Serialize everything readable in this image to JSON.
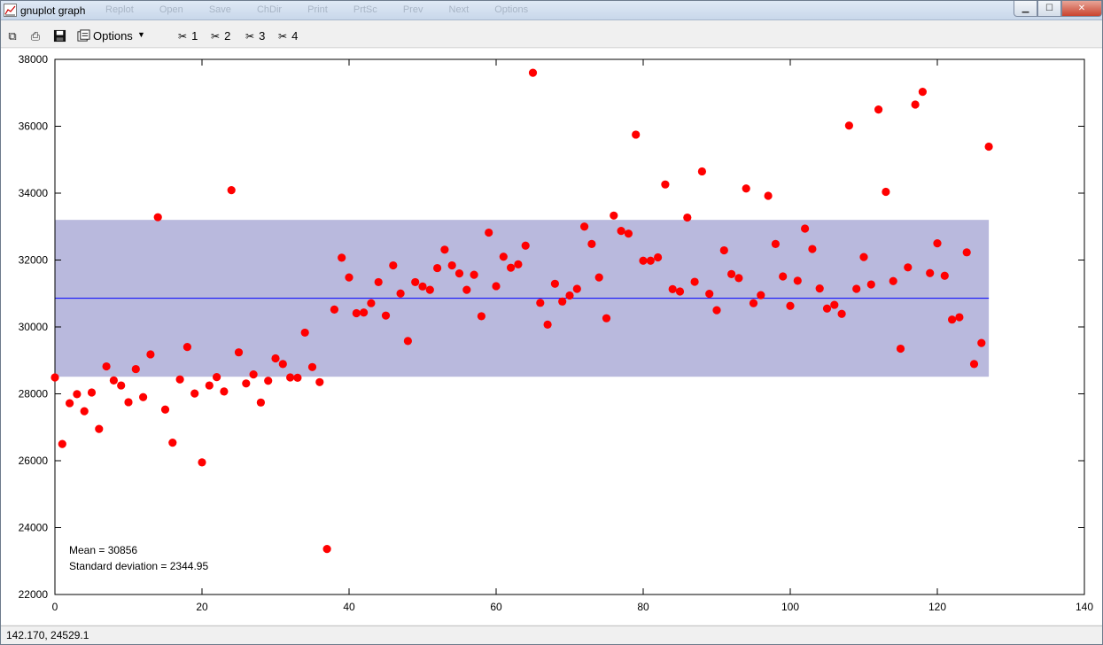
{
  "window": {
    "title": "gnuplot graph",
    "ghost_menu": [
      "Replot",
      "Open",
      "Save",
      "ChDir",
      "Print",
      "PrtSc",
      "Prev",
      "Next",
      "Options"
    ],
    "buttons": {
      "minimize": "▁",
      "maximize": "☐",
      "close": "✕"
    }
  },
  "toolbar": {
    "copy_icon": "copy-icon",
    "print_icon": "printer-icon",
    "save_icon": "floppy-icon",
    "options_label": "Options",
    "tools": [
      "1",
      "2",
      "3",
      "4"
    ]
  },
  "status": {
    "coordinates": "142.170,  24529.1"
  },
  "colors": {
    "points": "#ff0000",
    "band": "#b9b9dd",
    "mean_line": "#0000ff"
  },
  "chart_data": {
    "type": "scatter",
    "xlim": [
      0,
      140
    ],
    "ylim": [
      22000,
      38000
    ],
    "x_ticks": [
      0,
      20,
      40,
      60,
      80,
      100,
      120,
      140
    ],
    "y_ticks": [
      22000,
      24000,
      26000,
      28000,
      30000,
      32000,
      34000,
      36000,
      38000
    ],
    "mean": 30856,
    "stddev": 2344.95,
    "band": {
      "x_range": [
        0,
        127
      ],
      "y_range": [
        28511,
        33201
      ]
    },
    "annotations": [
      "Mean = 30856",
      "Standard deviation = 2344.95"
    ],
    "points": [
      [
        0,
        28490
      ],
      [
        1,
        26500
      ],
      [
        2,
        27720
      ],
      [
        3,
        27990
      ],
      [
        4,
        27480
      ],
      [
        5,
        28040
      ],
      [
        6,
        26950
      ],
      [
        7,
        28820
      ],
      [
        8,
        28400
      ],
      [
        9,
        28250
      ],
      [
        10,
        27750
      ],
      [
        11,
        28740
      ],
      [
        12,
        27900
      ],
      [
        13,
        29180
      ],
      [
        14,
        33280
      ],
      [
        15,
        27530
      ],
      [
        16,
        26540
      ],
      [
        17,
        28430
      ],
      [
        18,
        29400
      ],
      [
        19,
        28010
      ],
      [
        20,
        25950
      ],
      [
        21,
        28250
      ],
      [
        22,
        28500
      ],
      [
        23,
        28070
      ],
      [
        24,
        34090
      ],
      [
        25,
        29240
      ],
      [
        26,
        28310
      ],
      [
        27,
        28580
      ],
      [
        28,
        27740
      ],
      [
        29,
        28390
      ],
      [
        30,
        29060
      ],
      [
        31,
        28890
      ],
      [
        32,
        28490
      ],
      [
        33,
        28480
      ],
      [
        34,
        29830
      ],
      [
        35,
        28800
      ],
      [
        36,
        28350
      ],
      [
        37,
        23360
      ],
      [
        38,
        30520
      ],
      [
        39,
        32070
      ],
      [
        40,
        31480
      ],
      [
        41,
        30410
      ],
      [
        42,
        30430
      ],
      [
        43,
        30710
      ],
      [
        44,
        31340
      ],
      [
        45,
        30340
      ],
      [
        46,
        31840
      ],
      [
        47,
        31000
      ],
      [
        48,
        29580
      ],
      [
        49,
        31340
      ],
      [
        50,
        31210
      ],
      [
        51,
        31110
      ],
      [
        52,
        31760
      ],
      [
        53,
        32310
      ],
      [
        54,
        31840
      ],
      [
        55,
        31600
      ],
      [
        56,
        31110
      ],
      [
        57,
        31560
      ],
      [
        58,
        30320
      ],
      [
        59,
        32820
      ],
      [
        60,
        31220
      ],
      [
        61,
        32100
      ],
      [
        62,
        31770
      ],
      [
        63,
        31870
      ],
      [
        64,
        32430
      ],
      [
        65,
        37600
      ],
      [
        66,
        30720
      ],
      [
        67,
        30070
      ],
      [
        68,
        31290
      ],
      [
        69,
        30760
      ],
      [
        70,
        30940
      ],
      [
        71,
        31140
      ],
      [
        72,
        33000
      ],
      [
        73,
        32480
      ],
      [
        74,
        31480
      ],
      [
        75,
        30260
      ],
      [
        76,
        33330
      ],
      [
        77,
        32870
      ],
      [
        78,
        32790
      ],
      [
        79,
        35750
      ],
      [
        80,
        31980
      ],
      [
        81,
        31980
      ],
      [
        82,
        32080
      ],
      [
        83,
        34260
      ],
      [
        84,
        31130
      ],
      [
        85,
        31060
      ],
      [
        86,
        33270
      ],
      [
        87,
        31350
      ],
      [
        88,
        34650
      ],
      [
        89,
        30990
      ],
      [
        90,
        30500
      ],
      [
        91,
        32290
      ],
      [
        92,
        31580
      ],
      [
        93,
        31460
      ],
      [
        94,
        34140
      ],
      [
        95,
        30710
      ],
      [
        96,
        30950
      ],
      [
        97,
        33920
      ],
      [
        98,
        32480
      ],
      [
        99,
        31510
      ],
      [
        100,
        30630
      ],
      [
        101,
        31380
      ],
      [
        102,
        32940
      ],
      [
        103,
        32330
      ],
      [
        104,
        31150
      ],
      [
        105,
        30550
      ],
      [
        106,
        30660
      ],
      [
        107,
        30390
      ],
      [
        108,
        36020
      ],
      [
        109,
        31140
      ],
      [
        110,
        32090
      ],
      [
        111,
        31270
      ],
      [
        112,
        36500
      ],
      [
        113,
        34040
      ],
      [
        114,
        31370
      ],
      [
        115,
        29350
      ],
      [
        116,
        31780
      ],
      [
        117,
        36650
      ],
      [
        118,
        37030
      ],
      [
        119,
        31610
      ],
      [
        120,
        32500
      ],
      [
        121,
        31530
      ],
      [
        122,
        30220
      ],
      [
        123,
        30290
      ],
      [
        124,
        32230
      ],
      [
        125,
        28890
      ],
      [
        126,
        29520
      ],
      [
        127,
        35390
      ]
    ]
  }
}
